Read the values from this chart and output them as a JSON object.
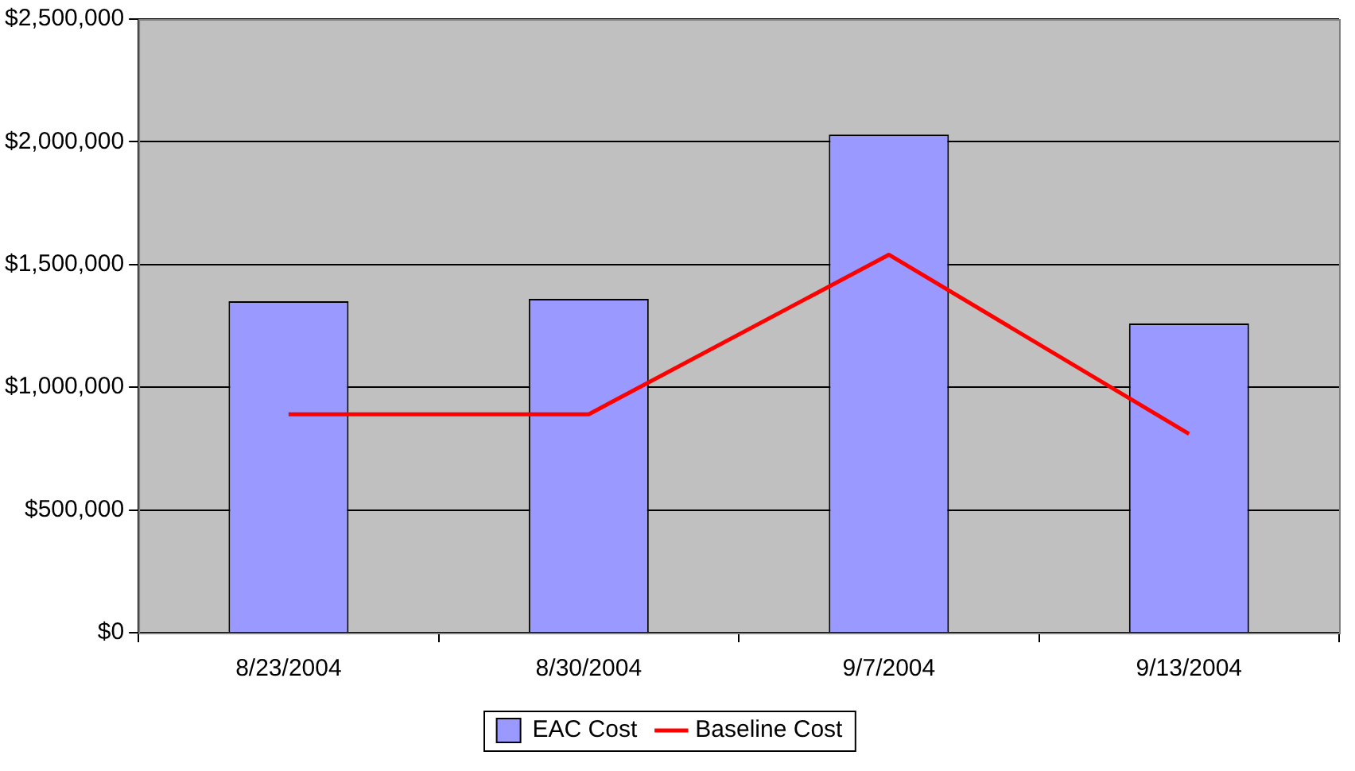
{
  "chart_data": {
    "type": "bar",
    "categories": [
      "8/23/2004",
      "8/30/2004",
      "9/7/2004",
      "9/13/2004"
    ],
    "series": [
      {
        "name": "EAC Cost",
        "color": "#9999ff",
        "values": [
          1350000,
          1360000,
          2030000,
          1260000
        ]
      },
      {
        "name": "Baseline Cost",
        "type": "line",
        "color": "#ff0000",
        "values": [
          890000,
          890000,
          1540000,
          810000
        ]
      }
    ],
    "ylim": [
      0,
      2500000
    ],
    "yticks": [
      {
        "value": 0,
        "label": "$0"
      },
      {
        "value": 500000,
        "label": "$500,000"
      },
      {
        "value": 1000000,
        "label": "$1,000,000"
      },
      {
        "value": 1500000,
        "label": "$1,500,000"
      },
      {
        "value": 2000000,
        "label": "$2,000,000"
      },
      {
        "value": 2500000,
        "label": "$2,500,000"
      }
    ],
    "grid": "y",
    "legend": "bottom",
    "marker": "none"
  }
}
